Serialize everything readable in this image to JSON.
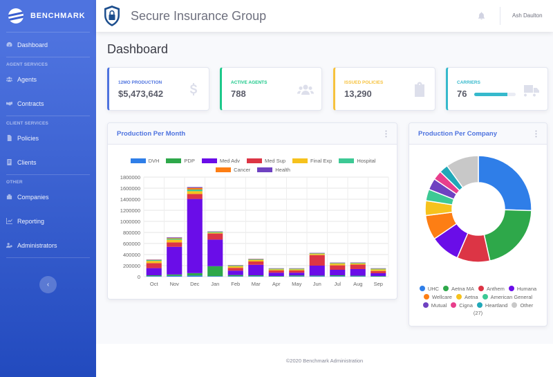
{
  "brand": {
    "name": "BENCHMARK"
  },
  "sidebar": {
    "items": [
      {
        "label": "Dashboard",
        "icon": "tachometer-icon"
      },
      {
        "heading": "AGENT SERVICES"
      },
      {
        "label": "Agents",
        "icon": "users-icon"
      },
      {
        "label": "Contracts",
        "icon": "handshake-icon"
      },
      {
        "heading": "CLIENT SERVICES"
      },
      {
        "label": "Policies",
        "icon": "file-icon"
      },
      {
        "label": "Clients",
        "icon": "address-card-icon"
      },
      {
        "heading": "OTHER"
      },
      {
        "label": "Companies",
        "icon": "building-icon"
      },
      {
        "label": "Reporting",
        "icon": "chart-icon"
      },
      {
        "label": "Administrators",
        "icon": "users-cog-icon"
      }
    ],
    "toggle": "‹"
  },
  "topbar": {
    "title": "Secure Insurance Group",
    "user": "Ash Daulton"
  },
  "page": {
    "title": "Dashboard"
  },
  "stats": [
    {
      "label": "12MO PRODUCTION",
      "value": "$5,473,642",
      "color": "#4e73df",
      "icon": "dollar-icon"
    },
    {
      "label": "ACTIVE AGENTS",
      "value": "788",
      "color": "#1cc88a",
      "icon": "users-icon"
    },
    {
      "label": "ISSUED POLICIES",
      "value": "13,290",
      "color": "#f6c23e",
      "icon": "clipboard-icon"
    },
    {
      "label": "CARRIERS",
      "value": "76",
      "color": "#36b9cc",
      "icon": "truck-icon",
      "progress": 0.8
    }
  ],
  "production_month": {
    "title": "Production Per Month"
  },
  "production_company": {
    "title": "Production Per Company",
    "extra": "(27)"
  },
  "footer": {
    "text": "©2020 Benchmark Administration"
  },
  "chart_data": [
    {
      "type": "bar",
      "stacked": true,
      "categories": [
        "Oct",
        "Nov",
        "Dec",
        "Jan",
        "Feb",
        "Mar",
        "Apr",
        "May",
        "Jun",
        "Jul",
        "Aug",
        "Sep"
      ],
      "ylim": [
        0,
        1800000
      ],
      "yticks": [
        0,
        200000,
        400000,
        600000,
        800000,
        1000000,
        1200000,
        1400000,
        1600000,
        1800000
      ],
      "legend_position": "top",
      "grid": true,
      "series": [
        {
          "name": "DVH",
          "color": "#2f7ee8",
          "values": [
            10000,
            15000,
            20000,
            10000,
            10000,
            10000,
            5000,
            8000,
            10000,
            10000,
            8000,
            5000
          ]
        },
        {
          "name": "PDP",
          "color": "#2ea84a",
          "values": [
            15000,
            25000,
            45000,
            180000,
            20000,
            15000,
            8000,
            15000,
            10000,
            15000,
            10000,
            8000
          ]
        },
        {
          "name": "Med Adv",
          "color": "#6a0de8",
          "values": [
            130000,
            500000,
            1340000,
            480000,
            80000,
            190000,
            60000,
            50000,
            180000,
            100000,
            120000,
            50000
          ]
        },
        {
          "name": "Med Sup",
          "color": "#dc3545",
          "values": [
            90000,
            80000,
            90000,
            110000,
            50000,
            60000,
            40000,
            40000,
            190000,
            80000,
            80000,
            40000
          ]
        },
        {
          "name": "Final Exp",
          "color": "#f6c21d",
          "values": [
            40000,
            50000,
            50000,
            15000,
            30000,
            30000,
            20000,
            20000,
            20000,
            30000,
            20000,
            30000
          ]
        },
        {
          "name": "Hospital",
          "color": "#3dc995",
          "values": [
            15000,
            20000,
            30000,
            15000,
            10000,
            10000,
            10000,
            10000,
            10000,
            10000,
            10000,
            10000
          ]
        },
        {
          "name": "Cancer",
          "color": "#fd7e14",
          "values": [
            5000,
            10000,
            30000,
            5000,
            5000,
            5000,
            5000,
            5000,
            5000,
            5000,
            5000,
            5000
          ]
        },
        {
          "name": "Health",
          "color": "#6f42c1",
          "values": [
            5000,
            10000,
            15000,
            5000,
            5000,
            5000,
            5000,
            5000,
            5000,
            5000,
            5000,
            5000
          ]
        }
      ]
    },
    {
      "type": "pie",
      "donut": true,
      "legend_position": "bottom",
      "slices": [
        {
          "name": "UHC",
          "value": 25.5,
          "color": "#2f7ee8"
        },
        {
          "name": "Aetna MA",
          "value": 21,
          "color": "#2ea84a"
        },
        {
          "name": "Anthem",
          "value": 10,
          "color": "#dc3545"
        },
        {
          "name": "Humana",
          "value": 9,
          "color": "#6a0de8"
        },
        {
          "name": "Wellcare",
          "value": 7.5,
          "color": "#fd7e14"
        },
        {
          "name": "Aetna",
          "value": 4.5,
          "color": "#f6c21d"
        },
        {
          "name": "American General",
          "value": 3.5,
          "color": "#3dc995"
        },
        {
          "name": "Mutual",
          "value": 3.5,
          "color": "#6f42c1"
        },
        {
          "name": "Cigna",
          "value": 2.8,
          "color": "#e83e8c"
        },
        {
          "name": "Heartland",
          "value": 2.7,
          "color": "#20a8b8"
        },
        {
          "name": "Other",
          "value": 10,
          "color": "#c8c8c8"
        }
      ]
    }
  ]
}
